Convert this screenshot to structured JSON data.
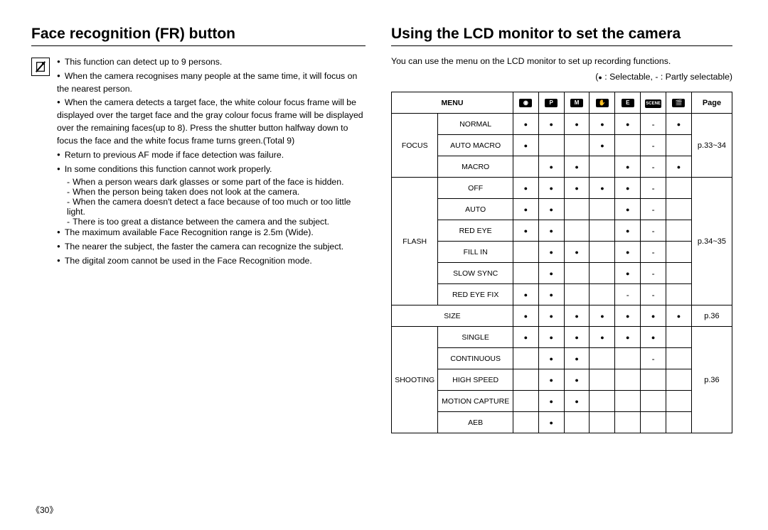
{
  "left": {
    "title": "Face recognition (FR) button",
    "notes": [
      "This function can detect up to 9 persons.",
      "When the camera recognises many people at the same time, it will focus on the nearest person.",
      "When the camera detects a target face, the white colour focus frame will be displayed over the target face and the gray colour focus frame will be displayed over the remaining faces(up to 8). Press the shutter button halfway down to focus the face and the white focus frame turns green.(Total 9)",
      "Return to previous AF mode if face detection was failure.",
      "In some conditions this function cannot work properly."
    ],
    "sub_notes": [
      "When a person wears dark glasses or some part of the face is hidden.",
      "When the person being taken does not look at the camera.",
      "When the camera doesn't detect a face because of too much or too little light.",
      "There is too great a distance between the camera and the subject."
    ],
    "notes2": [
      "The maximum available Face Recognition range is 2.5m (Wide).",
      "The nearer the subject, the faster the camera can recognize the subject.",
      "The digital zoom cannot be used in the Face Recognition mode."
    ]
  },
  "right": {
    "title": "Using the LCD monitor to set the camera",
    "intro": "You can use the menu on the LCD monitor to set up recording functions.",
    "legend_dot": "●",
    "legend_text": " : Selectable, - : Partly selectable)",
    "header": {
      "menu": "MENU",
      "modes": [
        "📷",
        "P",
        "M",
        "ASR",
        "EFF",
        "SCENE",
        "🎬"
      ],
      "page": "Page"
    },
    "rows": [
      {
        "group": "FOCUS",
        "item": "NORMAL",
        "cells": [
          "●",
          "●",
          "●",
          "●",
          "●",
          "-",
          "●"
        ],
        "page": "p.33~34",
        "span": 3
      },
      {
        "group": "",
        "item": "AUTO MACRO",
        "cells": [
          "●",
          "",
          "",
          "●",
          "",
          "-",
          ""
        ],
        "page": ""
      },
      {
        "group": "",
        "item": "MACRO",
        "cells": [
          "",
          "●",
          "●",
          "",
          "●",
          "-",
          "●"
        ],
        "page": ""
      },
      {
        "group": "FLASH",
        "item": "OFF",
        "cells": [
          "●",
          "●",
          "●",
          "●",
          "●",
          "-",
          ""
        ],
        "page": "p.34~35",
        "span": 6
      },
      {
        "group": "",
        "item": "AUTO",
        "cells": [
          "●",
          "●",
          "",
          "",
          "●",
          "-",
          ""
        ],
        "page": ""
      },
      {
        "group": "",
        "item": "RED EYE",
        "cells": [
          "●",
          "●",
          "",
          "",
          "●",
          "-",
          ""
        ],
        "page": ""
      },
      {
        "group": "",
        "item": "FILL IN",
        "cells": [
          "",
          "●",
          "●",
          "",
          "●",
          "-",
          ""
        ],
        "page": ""
      },
      {
        "group": "",
        "item": "SLOW SYNC",
        "cells": [
          "",
          "●",
          "",
          "",
          "●",
          "-",
          ""
        ],
        "page": ""
      },
      {
        "group": "",
        "item": "RED EYE FIX",
        "cells": [
          "●",
          "●",
          "",
          "",
          "-",
          "-",
          ""
        ],
        "page": ""
      },
      {
        "group": "SIZE",
        "item": "",
        "cells": [
          "●",
          "●",
          "●",
          "●",
          "●",
          "●",
          "●"
        ],
        "page": "p.36",
        "span": 1,
        "merge": true
      },
      {
        "group": "SHOOTING",
        "item": "SINGLE",
        "cells": [
          "●",
          "●",
          "●",
          "●",
          "●",
          "●",
          ""
        ],
        "page": "p.36",
        "span": 5,
        "small": true
      },
      {
        "group": "",
        "item": "CONTINUOUS",
        "cells": [
          "",
          "●",
          "●",
          "",
          "",
          "-",
          ""
        ],
        "page": ""
      },
      {
        "group": "",
        "item": "HIGH SPEED",
        "cells": [
          "",
          "●",
          "●",
          "",
          "",
          "",
          ""
        ],
        "page": ""
      },
      {
        "group": "",
        "item": "MOTION CAPTURE",
        "cells": [
          "",
          "●",
          "●",
          "",
          "",
          "",
          ""
        ],
        "page": ""
      },
      {
        "group": "",
        "item": "AEB",
        "cells": [
          "",
          "●",
          "",
          "",
          "",
          "",
          ""
        ],
        "page": ""
      }
    ]
  },
  "page_number": "《30》"
}
